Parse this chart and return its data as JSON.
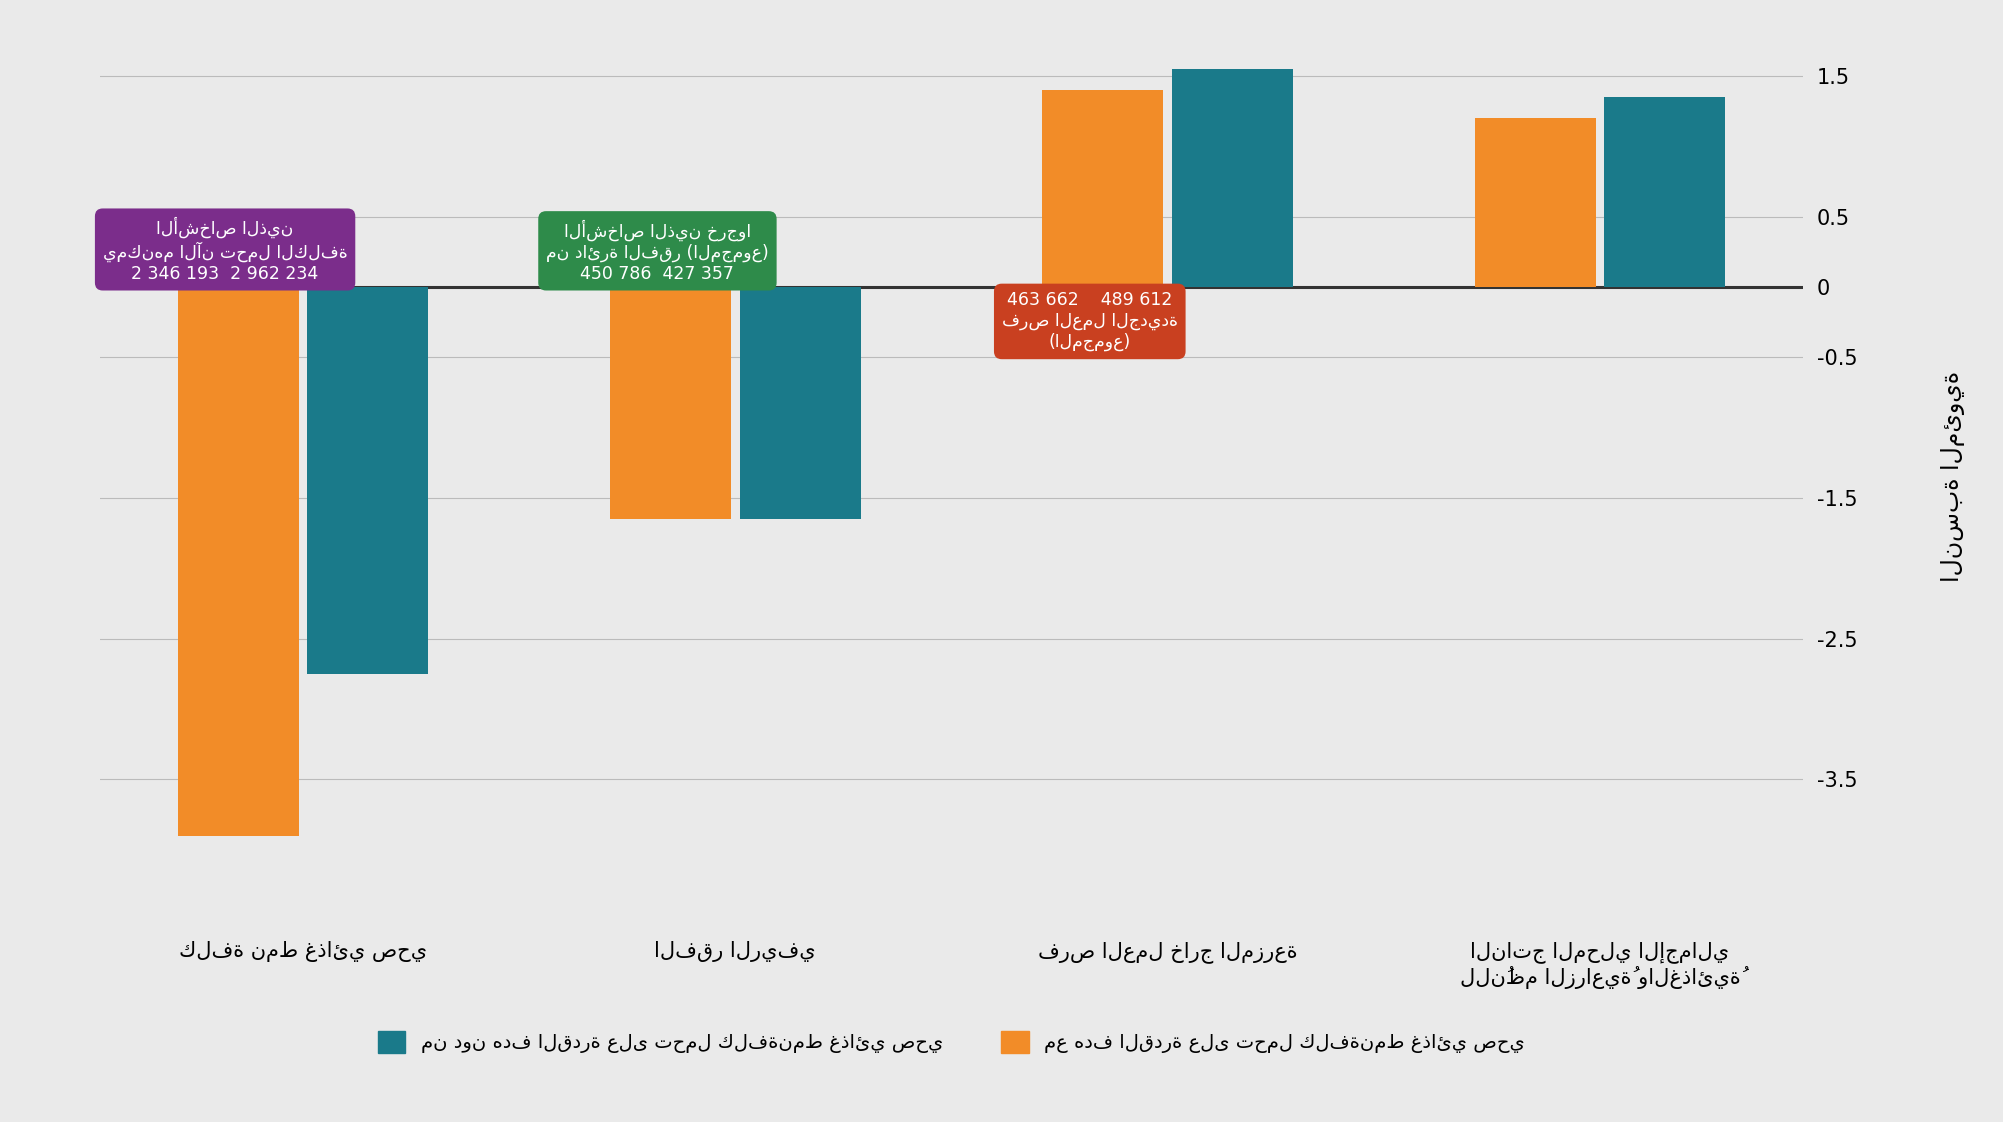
{
  "categories_raw": [
    "كلفة نمط غذائي صحي",
    "الفقر الريفي",
    "فرص العمل خارج المزرعة",
    "الناتج المحلي الإجمالي\nللنُظم الزراعيةُ والغذائيةُ"
  ],
  "orange_values": [
    -3.9,
    -1.65,
    1.4,
    1.2
  ],
  "teal_values": [
    -2.75,
    -1.65,
    1.55,
    1.35
  ],
  "orange_color": "#F28C28",
  "teal_color": "#1A7A8A",
  "ylim": [
    -4.5,
    1.8
  ],
  "yticks": [
    1.5,
    0.5,
    0.0,
    -0.5,
    -1.5,
    -2.5,
    -3.5
  ],
  "ytick_labels": [
    "1.5",
    "0.5",
    "0",
    "-0.5",
    "-1.5",
    "-2.5",
    "-3.5"
  ],
  "ylabel_raw": "النسبة المئوية",
  "bg_color": "#EAEAEA",
  "annotation_purple_bg": "#7B2D8B",
  "annotation_green_bg": "#2E8B4A",
  "annotation_red_bg": "#C94020",
  "ann1_lines": [
    "الأشخاص الذين",
    "يمكنهم الآن تحمل الكلفة",
    "2 346 193  2 962 234"
  ],
  "ann2_lines": [
    "الأشخاص الذين خرجوا",
    "من دائرة الفقر (المجموع)",
    "450 786  427 357"
  ],
  "ann3_lines": [
    "463 662    489 612",
    "فرص العمل الجديدة",
    "(المجموع)"
  ],
  "legend_orange_raw": "مع هدف القدرة على تحمل كلفةنمط غذائي صحي",
  "legend_teal_raw": "من دون هدف القدرة على تحمل كلفةنمط غذائي صحي"
}
